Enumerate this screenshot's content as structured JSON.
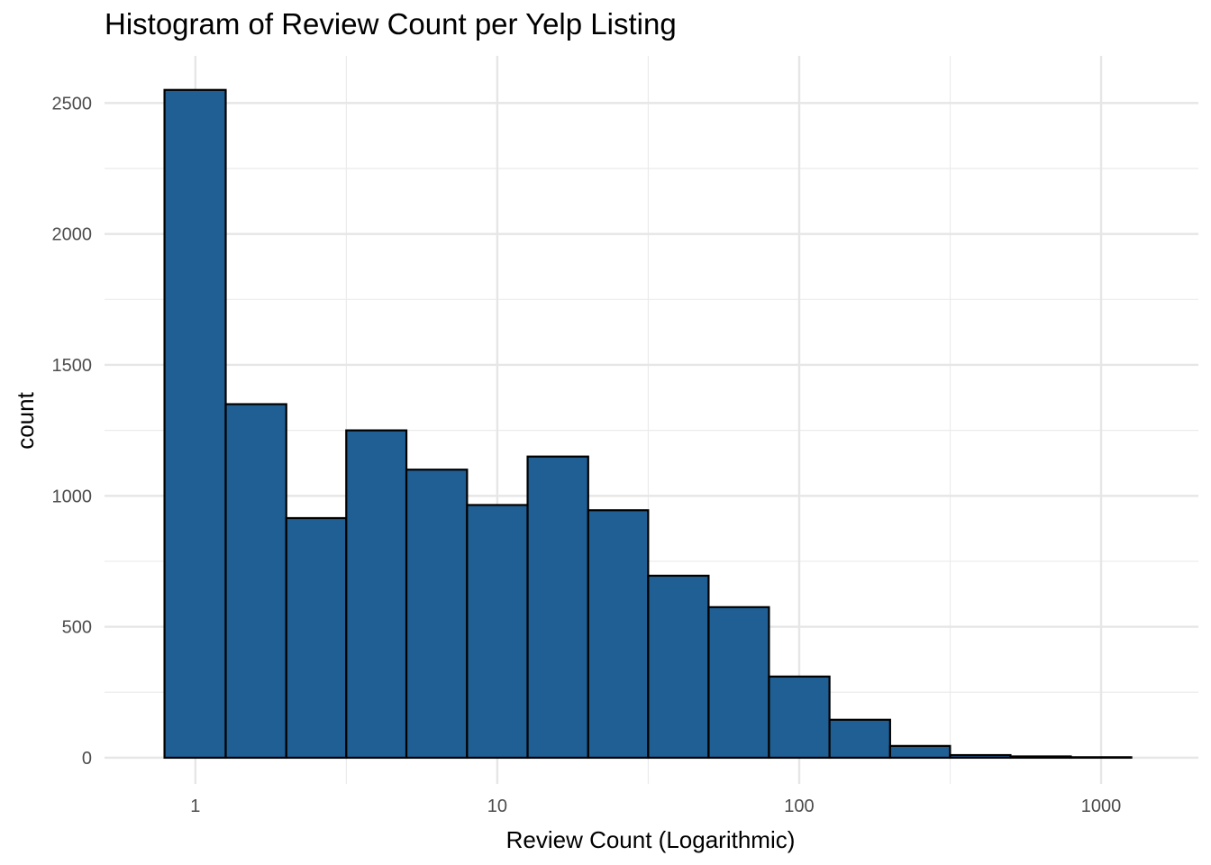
{
  "chart_data": {
    "type": "bar",
    "title": "Histogram of Review Count per Yelp Listing",
    "xlabel": "Review Count (Logarithmic)",
    "ylabel": "count",
    "x_scale": "log10",
    "x_ticks": [
      1,
      10,
      100,
      1000
    ],
    "x_tick_labels": [
      "1",
      "10",
      "100",
      "1000"
    ],
    "y_ticks": [
      0,
      500,
      1000,
      1500,
      2000,
      2500
    ],
    "y_tick_labels": [
      "0",
      "500",
      "1000",
      "1500",
      "2000",
      "2500"
    ],
    "ylim": [
      -100,
      2680
    ],
    "xlim": [
      0.5,
      2100
    ],
    "grid": true,
    "bar_color": "#1f5f94",
    "bar_edge_color": "#000000",
    "bins": [
      {
        "x_start": 0.79,
        "x_end": 1.26,
        "count": 2550
      },
      {
        "x_start": 1.26,
        "x_end": 2.0,
        "count": 1350
      },
      {
        "x_start": 2.0,
        "x_end": 3.16,
        "count": 915
      },
      {
        "x_start": 3.16,
        "x_end": 5.0,
        "count": 1250
      },
      {
        "x_start": 5.0,
        "x_end": 7.94,
        "count": 1100
      },
      {
        "x_start": 7.94,
        "x_end": 12.6,
        "count": 965
      },
      {
        "x_start": 12.6,
        "x_end": 20.0,
        "count": 1150
      },
      {
        "x_start": 20.0,
        "x_end": 31.6,
        "count": 945
      },
      {
        "x_start": 31.6,
        "x_end": 50.1,
        "count": 695
      },
      {
        "x_start": 50.1,
        "x_end": 79.4,
        "count": 575
      },
      {
        "x_start": 79.4,
        "x_end": 126,
        "count": 310
      },
      {
        "x_start": 126,
        "x_end": 200,
        "count": 145
      },
      {
        "x_start": 200,
        "x_end": 316,
        "count": 45
      },
      {
        "x_start": 316,
        "x_end": 501,
        "count": 10
      },
      {
        "x_start": 501,
        "x_end": 794,
        "count": 5
      },
      {
        "x_start": 794,
        "x_end": 1259,
        "count": 2
      }
    ]
  }
}
